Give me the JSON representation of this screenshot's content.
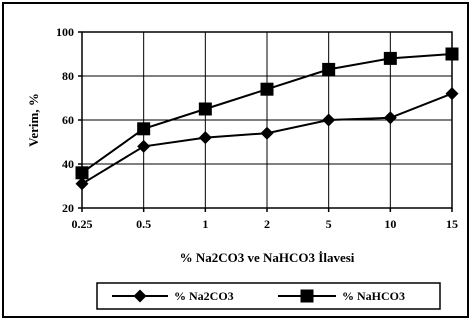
{
  "chart_data": {
    "type": "line",
    "xlabel": "% Na2CO3 ve NaHCO3 İlavesi",
    "ylabel": "Verim, %",
    "categories": [
      "0.25",
      "0.5",
      "1",
      "2",
      "5",
      "10",
      "15"
    ],
    "ylim": [
      20,
      100
    ],
    "yticks": [
      "20",
      "40",
      "60",
      "80",
      "100"
    ],
    "grid": true,
    "legend_position": "bottom",
    "series": [
      {
        "name": "% Na2CO3",
        "marker": "diamond",
        "values": [
          31,
          48,
          52,
          54,
          60,
          61,
          72
        ]
      },
      {
        "name": "% NaHCO3",
        "marker": "square",
        "values": [
          36,
          56,
          65,
          74,
          83,
          88,
          90
        ]
      }
    ]
  }
}
